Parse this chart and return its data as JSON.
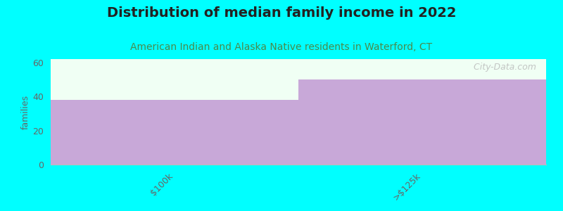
{
  "title": "Distribution of median family income in 2022",
  "subtitle": "American Indian and Alaska Native residents in Waterford, CT",
  "categories": [
    "$100k",
    ">$125k"
  ],
  "values": [
    38,
    50
  ],
  "bar_color": "#C8A8D8",
  "background_color": "#00FFFF",
  "plot_bg_color": "#F0FFF4",
  "ylabel": "families",
  "ylim": [
    0,
    62
  ],
  "yticks": [
    0,
    20,
    40,
    60
  ],
  "title_fontsize": 14,
  "subtitle_fontsize": 10,
  "title_color": "#222222",
  "subtitle_color": "#4A8A4A",
  "watermark": "  City-Data.com",
  "bar_width": 1.0
}
